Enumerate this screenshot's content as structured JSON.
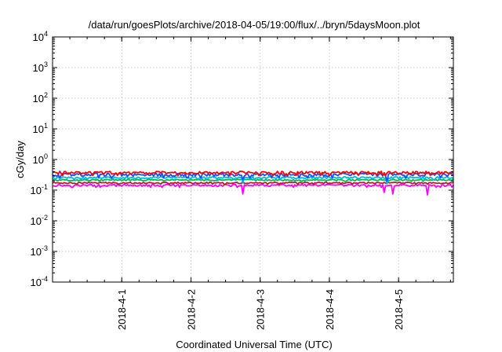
{
  "chart_data": {
    "type": "line",
    "title": "/data/run/goesPlots/archive/2018-04-05/19:00/flux/../bryn/5daysMoon.plot",
    "xlabel": "Coordinated Universal Time (UTC)",
    "ylabel": "cGy/day",
    "yscale": "log",
    "ylim": [
      0.0001,
      10000
    ],
    "xlim": [
      "2018-03-31 00:00",
      "2018-04-05 19:00"
    ],
    "grid": true,
    "legend": "none",
    "y_ticks": [
      {
        "base": "10",
        "exp": "-4",
        "value": 0.0001
      },
      {
        "base": "10",
        "exp": "-3",
        "value": 0.001
      },
      {
        "base": "10",
        "exp": "-2",
        "value": 0.01
      },
      {
        "base": "10",
        "exp": "-1",
        "value": 0.1
      },
      {
        "base": "10",
        "exp": "0",
        "value": 1
      },
      {
        "base": "10",
        "exp": "1",
        "value": 10
      },
      {
        "base": "10",
        "exp": "2",
        "value": 100
      },
      {
        "base": "10",
        "exp": "3",
        "value": 1000
      },
      {
        "base": "10",
        "exp": "4",
        "value": 10000
      }
    ],
    "x_ticks": [
      "2018-4-1",
      "2018-4-2",
      "2018-4-3",
      "2018-4-4",
      "2018-4-5"
    ],
    "series": [
      {
        "color": "#ff00ff",
        "base": 0.14,
        "variation": 0.07,
        "dips": [
          [
            "2018-04-02 18:00",
            0.075
          ],
          [
            "2018-04-04 19:00",
            0.085
          ],
          [
            "2018-04-04 22:00",
            0.075
          ],
          [
            "2018-04-05 10:00",
            0.07
          ]
        ]
      },
      {
        "color": "#b0202c",
        "base": 0.17,
        "variation": 0.05,
        "dips": []
      },
      {
        "color": "#00b84a",
        "base": 0.21,
        "variation": 0.05,
        "dips": []
      },
      {
        "color": "#00b8d8",
        "base": 0.25,
        "variation": 0.07,
        "dips": [
          [
            "2018-04-02 18:00",
            0.17
          ],
          [
            "2018-04-04 20:00",
            0.16
          ]
        ]
      },
      {
        "color": "#1050ff",
        "base": 0.31,
        "variation": 0.12,
        "dips": [
          [
            "2018-04-02 18:00",
            0.22
          ],
          [
            "2018-04-04 20:00",
            0.2
          ]
        ]
      },
      {
        "color": "#ff0000",
        "base": 0.36,
        "variation": 0.1,
        "dips": []
      }
    ]
  }
}
